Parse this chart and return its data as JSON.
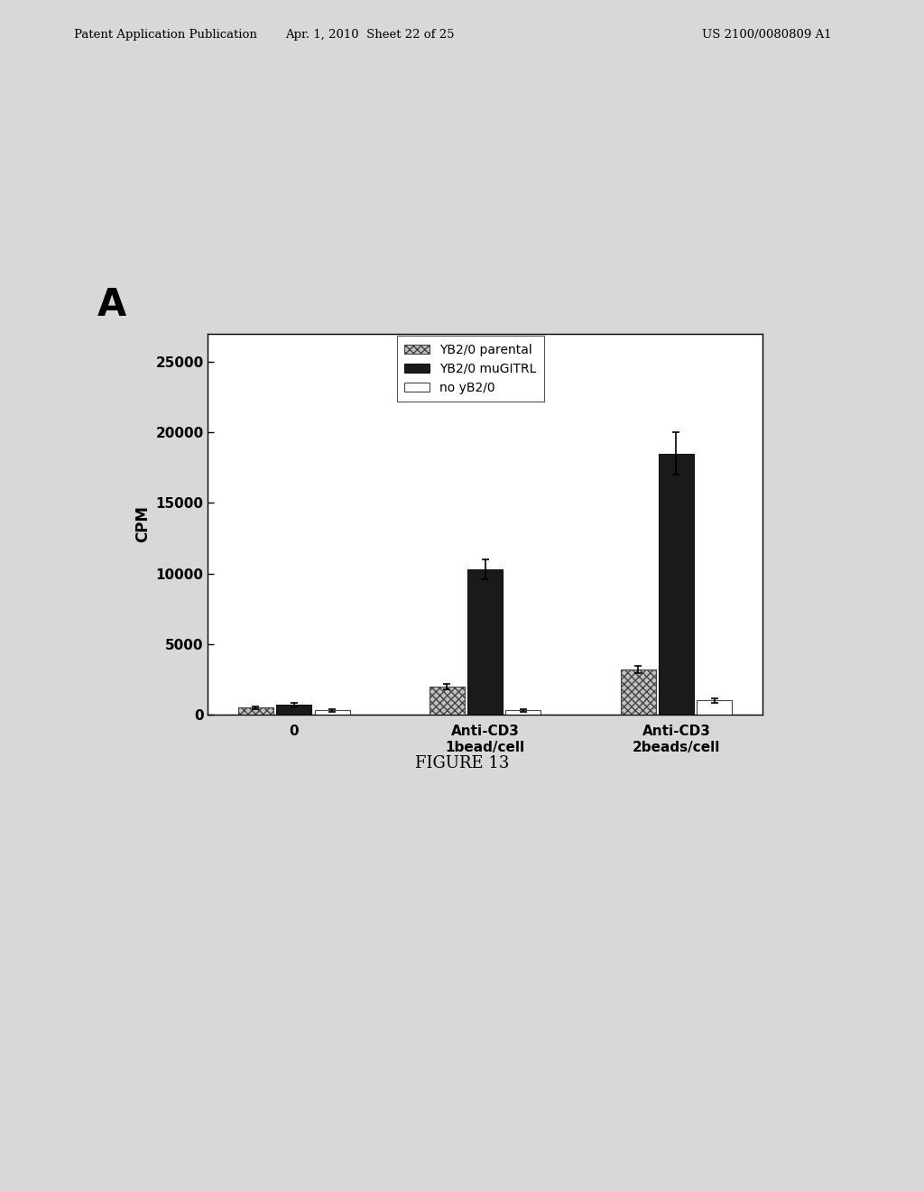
{
  "categories": [
    "0",
    "Anti-CD3\n1bead/cell",
    "Anti-CD3\n2beads/cell"
  ],
  "series": {
    "YB2/0 parental": [
      500,
      2000,
      3200
    ],
    "YB2/0 muGITRL": [
      700,
      10300,
      18500
    ],
    "no yB2/0": [
      300,
      300,
      1000
    ]
  },
  "errors": {
    "YB2/0 parental": [
      100,
      200,
      250
    ],
    "YB2/0 muGITRL": [
      150,
      700,
      1500
    ],
    "no yB2/0": [
      80,
      100,
      150
    ]
  },
  "ylabel": "CPM",
  "ylim": [
    0,
    27000
  ],
  "yticks": [
    0,
    5000,
    10000,
    15000,
    20000,
    25000
  ],
  "label_A": "A",
  "figure_label": "FIGURE 13",
  "header_left": "Patent Application Publication",
  "header_mid": "Apr. 1, 2010  Sheet 22 of 25",
  "header_right": "US 2100/0080809 A1",
  "bar_width": 0.2,
  "group_positions": [
    0,
    1,
    2
  ],
  "background_color": "#e8e8e8",
  "plot_bg": "#ffffff"
}
